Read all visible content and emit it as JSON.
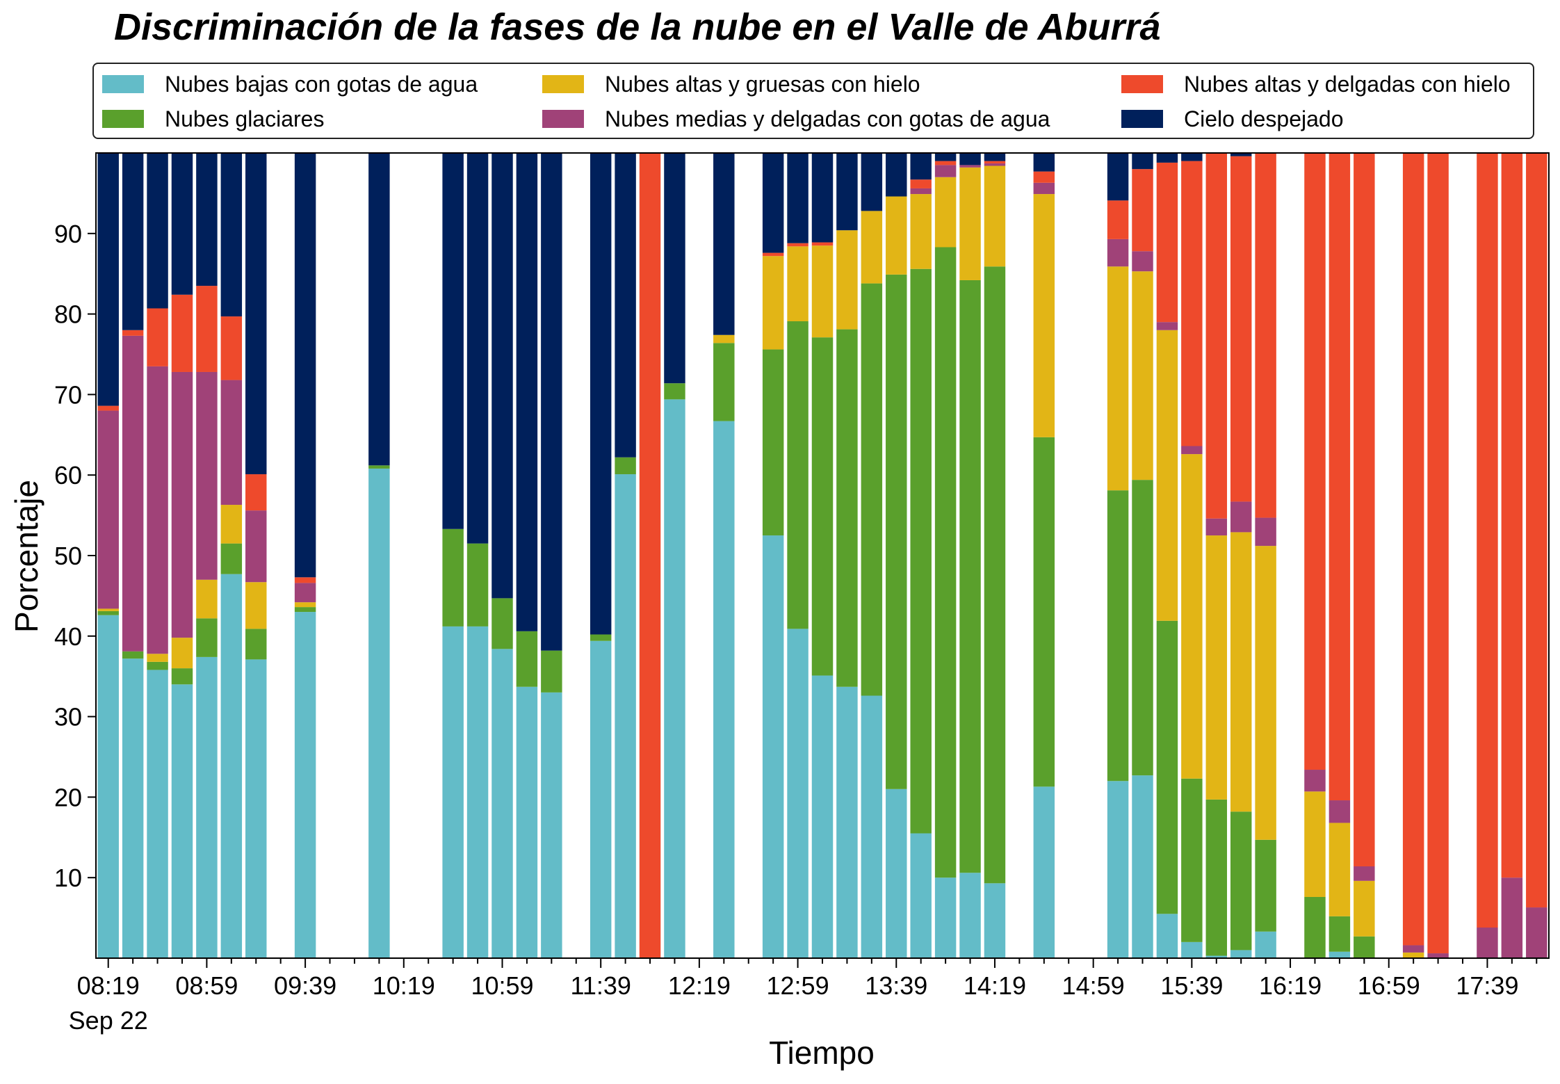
{
  "chart_data": {
    "type": "bar",
    "stacked": true,
    "title": "Discriminación de la fases de la nube en el Valle de Aburrá",
    "xlabel": "Tiempo",
    "ylabel": "Porcentaje",
    "date_label": "Sep 22",
    "ylim": [
      0,
      100
    ],
    "yticks": [
      10,
      20,
      30,
      40,
      50,
      60,
      70,
      80,
      90
    ],
    "xtick_labels": [
      "08:19",
      "08:59",
      "09:39",
      "10:19",
      "10:59",
      "11:39",
      "12:19",
      "12:59",
      "13:39",
      "14:19",
      "14:59",
      "15:39",
      "16:19",
      "16:59",
      "17:39"
    ],
    "legend_position": "top",
    "series": [
      {
        "name": "Nubes bajas con gotas de agua",
        "color": "#63bcc8"
      },
      {
        "name": "Nubes glaciares",
        "color": "#5aa02c"
      },
      {
        "name": "Nubes altas y gruesas con hielo",
        "color": "#e2b516"
      },
      {
        "name": "Nubes medias y delgadas con gotas de agua",
        "color": "#a04278"
      },
      {
        "name": "Nubes altas y delgadas con hielo",
        "color": "#ee4a2c"
      },
      {
        "name": "Cielo despejado",
        "color": "#00205b"
      }
    ],
    "categories": [
      "08:19",
      "08:29",
      "08:39",
      "08:49",
      "08:59",
      "09:09",
      "09:19",
      "09:29",
      "09:39",
      "09:49",
      "09:59",
      "10:09",
      "10:19",
      "10:29",
      "10:39",
      "10:49",
      "10:59",
      "11:09",
      "11:19",
      "11:29",
      "11:39",
      "11:49",
      "11:59",
      "12:09",
      "12:19",
      "12:29",
      "12:39",
      "12:49",
      "12:59",
      "13:09",
      "13:19",
      "13:29",
      "13:39",
      "13:49",
      "13:59",
      "14:09",
      "14:19",
      "14:29",
      "14:39",
      "14:49",
      "14:59",
      "15:09",
      "15:19",
      "15:29",
      "15:39",
      "15:49",
      "15:59",
      "16:09",
      "16:19",
      "16:29",
      "16:39",
      "16:49",
      "16:59",
      "17:09",
      "17:19",
      "17:29",
      "17:39",
      "17:49",
      "17:59"
    ],
    "values": [
      [
        42.6,
        0.5,
        0.3,
        24.6,
        0.6,
        31.4
      ],
      [
        37.2,
        0.9,
        0.0,
        39.2,
        0.7,
        22.0
      ],
      [
        35.8,
        1.0,
        1.0,
        35.7,
        7.2,
        19.3
      ],
      [
        34.0,
        2.0,
        3.8,
        33.0,
        9.6,
        17.6
      ],
      [
        37.4,
        4.8,
        4.8,
        25.8,
        10.7,
        16.5
      ],
      [
        47.7,
        3.8,
        4.8,
        15.5,
        7.9,
        20.3
      ],
      [
        37.1,
        3.8,
        5.8,
        8.9,
        4.5,
        39.9
      ],
      [
        0,
        0,
        0,
        0,
        0,
        0
      ],
      [
        43.0,
        0.6,
        0.6,
        2.4,
        0.7,
        52.7
      ],
      [
        0,
        0,
        0,
        0,
        0,
        0
      ],
      [
        0,
        0,
        0,
        0,
        0,
        0
      ],
      [
        60.8,
        0.4,
        0,
        0,
        0,
        38.8
      ],
      [
        0,
        0,
        0,
        0,
        0,
        0
      ],
      [
        0,
        0,
        0,
        0,
        0,
        0
      ],
      [
        41.2,
        12.1,
        0,
        0,
        0,
        46.7
      ],
      [
        41.2,
        10.3,
        0,
        0,
        0,
        48.5
      ],
      [
        38.4,
        6.3,
        0,
        0,
        0,
        55.3
      ],
      [
        33.7,
        6.9,
        0,
        0,
        0,
        59.4
      ],
      [
        33.0,
        5.2,
        0,
        0,
        0,
        61.8
      ],
      [
        0,
        0,
        0,
        0,
        0,
        0
      ],
      [
        39.4,
        0.8,
        0,
        0,
        0,
        59.8
      ],
      [
        60.1,
        2.1,
        0,
        0,
        0,
        37.8
      ],
      [
        0,
        0,
        0,
        0,
        100.0,
        0
      ],
      [
        69.4,
        2.0,
        0,
        0,
        0,
        28.6
      ],
      [
        0,
        0,
        0,
        0,
        0,
        0
      ],
      [
        66.7,
        9.7,
        1.0,
        0,
        0,
        22.6
      ],
      [
        0,
        0,
        0,
        0,
        0,
        0
      ],
      [
        52.5,
        23.1,
        11.6,
        0,
        0.4,
        12.4
      ],
      [
        40.9,
        38.2,
        9.3,
        0,
        0.4,
        11.2
      ],
      [
        35.1,
        42.0,
        11.4,
        0,
        0.4,
        11.1
      ],
      [
        33.7,
        44.4,
        12.3,
        0,
        0,
        9.6
      ],
      [
        32.6,
        51.2,
        9.0,
        0,
        0,
        7.2
      ],
      [
        21.0,
        63.9,
        9.7,
        0,
        0,
        5.4
      ],
      [
        15.5,
        70.1,
        9.3,
        0.7,
        1.1,
        3.3
      ],
      [
        10.0,
        78.3,
        8.7,
        1.5,
        0.5,
        1.0
      ],
      [
        10.6,
        73.6,
        14.0,
        0.3,
        0,
        1.5
      ],
      [
        9.3,
        76.6,
        12.5,
        0.3,
        0.3,
        1.0
      ],
      [
        0,
        0,
        0,
        0,
        0,
        0
      ],
      [
        21.3,
        43.4,
        30.2,
        1.4,
        1.4,
        2.3
      ],
      [
        0,
        0,
        0,
        0,
        0,
        0
      ],
      [
        0,
        0,
        0,
        0,
        0,
        0
      ],
      [
        22.0,
        36.1,
        27.8,
        3.4,
        4.8,
        5.9
      ],
      [
        22.7,
        36.7,
        25.9,
        2.5,
        10.2,
        2.0
      ],
      [
        5.5,
        36.4,
        36.1,
        1.0,
        19.8,
        1.2
      ],
      [
        2.0,
        20.3,
        40.3,
        1.0,
        35.4,
        1.0
      ],
      [
        0.3,
        19.4,
        32.8,
        2.1,
        45.4,
        0
      ],
      [
        1.0,
        17.2,
        34.7,
        3.8,
        42.9,
        0.4
      ],
      [
        3.3,
        11.4,
        36.5,
        3.5,
        45.3,
        0
      ],
      [
        0,
        0,
        0,
        0,
        0,
        0
      ],
      [
        0,
        7.6,
        13.1,
        2.7,
        76.6,
        0
      ],
      [
        0.8,
        4.4,
        11.6,
        2.8,
        80.4,
        0
      ],
      [
        0,
        2.7,
        6.9,
        1.8,
        88.6,
        0
      ],
      [
        0,
        0,
        0,
        0,
        0,
        0
      ],
      [
        0,
        0,
        0.7,
        0.9,
        98.4,
        0
      ],
      [
        0,
        0,
        0,
        0.6,
        99.4,
        0
      ],
      [
        0,
        0,
        0,
        0,
        0,
        0
      ],
      [
        0,
        0,
        0,
        3.8,
        96.2,
        0
      ],
      [
        0,
        0,
        0,
        10.0,
        90.0,
        0
      ],
      [
        0,
        0,
        0,
        6.3,
        93.7,
        0
      ]
    ]
  }
}
